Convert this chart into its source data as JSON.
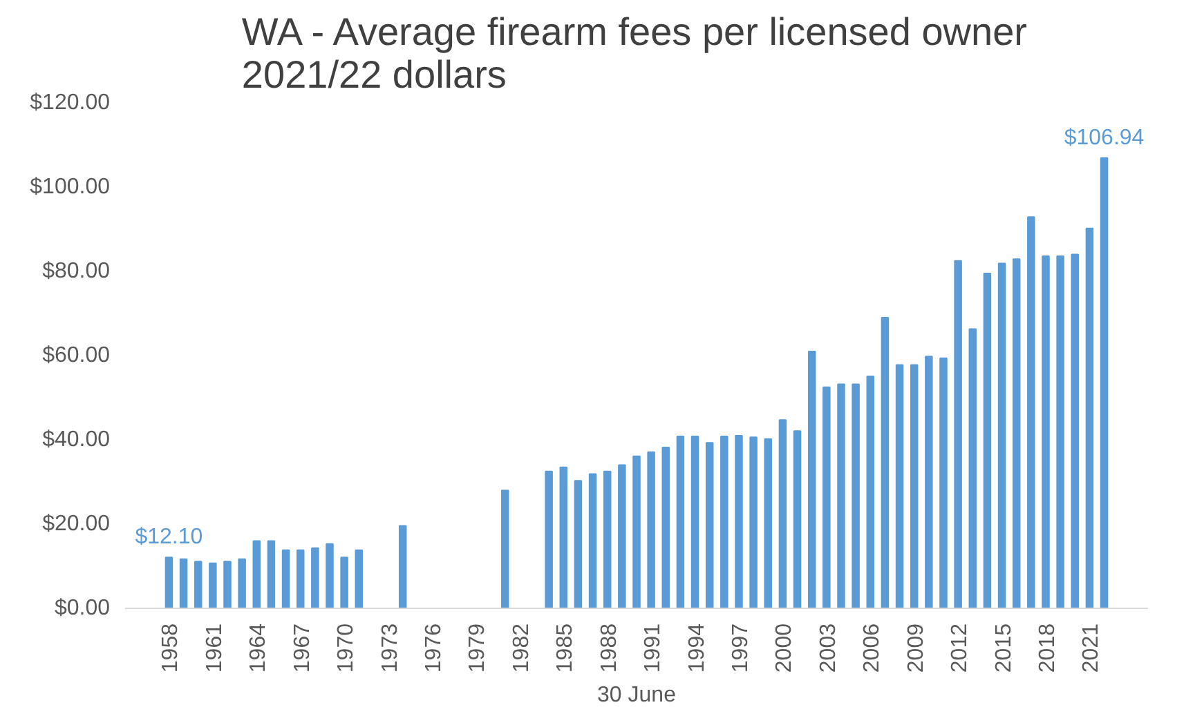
{
  "chart_data": {
    "type": "bar",
    "title": "WA - Average firearm fees per licensed owner\n2021/22 dollars",
    "xlabel": "30 June",
    "categories": [
      "1958",
      null,
      null,
      "1961",
      null,
      null,
      "1964",
      null,
      null,
      "1967",
      null,
      null,
      "1970",
      null,
      null,
      "1973",
      null,
      null,
      "1976",
      null,
      null,
      "1979",
      null,
      null,
      "1982",
      null,
      null,
      "1985",
      null,
      null,
      "1988",
      null,
      null,
      "1991",
      null,
      null,
      "1994",
      null,
      null,
      "1997",
      null,
      null,
      "2000",
      null,
      null,
      "2003",
      null,
      null,
      "2006",
      null,
      null,
      "2009",
      null,
      null,
      "2012",
      null,
      null,
      "2015",
      null,
      null,
      "2018",
      null,
      null,
      "2021",
      null
    ],
    "values": [
      12.1,
      11.7,
      11.1,
      10.7,
      11.1,
      11.7,
      16.0,
      16.0,
      13.8,
      13.8,
      14.3,
      15.3,
      12.1,
      13.8,
      null,
      null,
      19.6,
      null,
      null,
      null,
      null,
      null,
      null,
      28.0,
      null,
      null,
      32.5,
      33.5,
      30.3,
      31.9,
      32.5,
      34.0,
      36.1,
      37.1,
      38.2,
      40.8,
      40.8,
      39.3,
      40.8,
      41.0,
      40.6,
      40.2,
      44.7,
      42.1,
      61.0,
      52.5,
      53.2,
      53.2,
      55.1,
      69.0,
      57.8,
      57.8,
      59.8,
      59.4,
      82.5,
      66.3,
      79.5,
      81.9,
      82.9,
      92.9,
      83.6,
      83.6,
      84.0,
      90.2,
      106.94
    ],
    "value_labels": [
      "$12.10",
      null,
      null,
      null,
      null,
      null,
      null,
      null,
      null,
      null,
      null,
      null,
      null,
      null,
      null,
      null,
      null,
      null,
      null,
      null,
      null,
      null,
      null,
      null,
      null,
      null,
      null,
      null,
      null,
      null,
      null,
      null,
      null,
      null,
      null,
      null,
      null,
      null,
      null,
      null,
      null,
      null,
      null,
      null,
      null,
      null,
      null,
      null,
      null,
      null,
      null,
      null,
      null,
      null,
      null,
      null,
      null,
      null,
      null,
      null,
      null,
      null,
      null,
      null,
      "$106.94"
    ],
    "color": "#5b9bd5",
    "ylim": [
      0,
      120
    ],
    "yticks": [
      {
        "value": 0,
        "label": "$0.00"
      },
      {
        "value": 20,
        "label": "$20.00"
      },
      {
        "value": 40,
        "label": "$40.00"
      },
      {
        "value": 60,
        "label": "$60.00"
      },
      {
        "value": 80,
        "label": "$80.00"
      },
      {
        "value": 100,
        "label": "$100.00"
      },
      {
        "value": 120,
        "label": "$120.00"
      }
    ],
    "grid": false
  }
}
